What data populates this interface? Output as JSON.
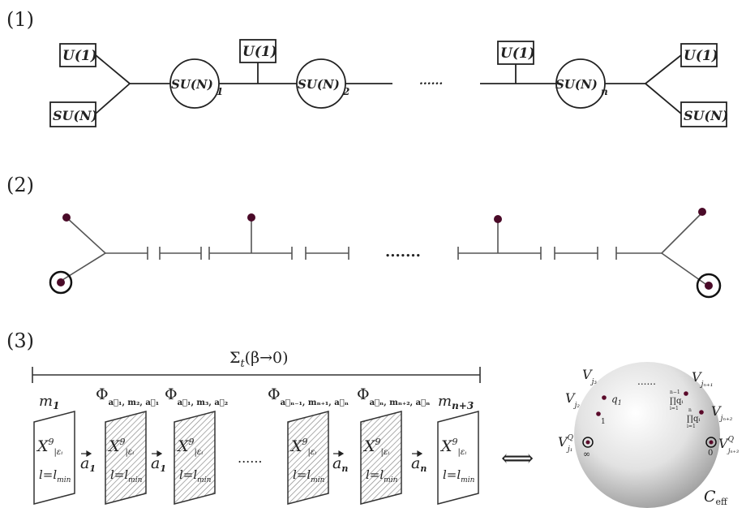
{
  "sections": {
    "one": "(1)",
    "two": "(2)",
    "three": "(3)"
  },
  "quiver": {
    "u1": "U(1)",
    "sun": "SU(N)",
    "sun_node": "SU(N)",
    "sub1": "1",
    "sub2": "2",
    "subn": "n",
    "dots": "......"
  },
  "branes": {
    "dots": "......."
  },
  "bottom": {
    "sigma_label": "Σ",
    "sigma_sub": "t",
    "sigma_arg": "(β→0)",
    "m1": "m",
    "m1_sub": "1",
    "mn3": "m",
    "mn3_sub": "n+3",
    "phi": "Φ",
    "phi1_sub": "a⃗₁, m₂, a⃗₁",
    "phi2_sub": "a⃗₁, m₃, a⃗₂",
    "phi3_sub": "a⃗ₙ₋₁, mₙ₊₁, a⃗ₙ",
    "phi4_sub": "a⃗ₙ, mₙ₊₂, a⃗ₙ",
    "x9": "X",
    "x9_sup": "9",
    "x9_sub": "|εᵢ",
    "l_eq": "l=l",
    "l_sub": "min",
    "a1": "a",
    "a1_sub": "1",
    "an": "a",
    "an_sub": "n",
    "dots": "......",
    "arrow": "⟺"
  },
  "sphere": {
    "v": "V",
    "j3": "j₃",
    "j2": "j₂",
    "j1_sup": "Q",
    "j1": "j₁",
    "jn1": "jₙ₊₁",
    "jn2": "jₙ₊₂",
    "jn3_sup": "Q",
    "jn3": "jₙ₊₃",
    "q1": "q",
    "q1_sub": "1",
    "one": "1",
    "inf": "∞",
    "zero": "0",
    "prod1": "∏qᵢ",
    "prod1_top": "n−1",
    "prod1_bot": "i=1",
    "prod2": "∏qᵢ",
    "prod2_top": "n",
    "prod2_bot": "i=1",
    "dots": "......",
    "ceff": "C",
    "ceff_sub": "eff"
  }
}
